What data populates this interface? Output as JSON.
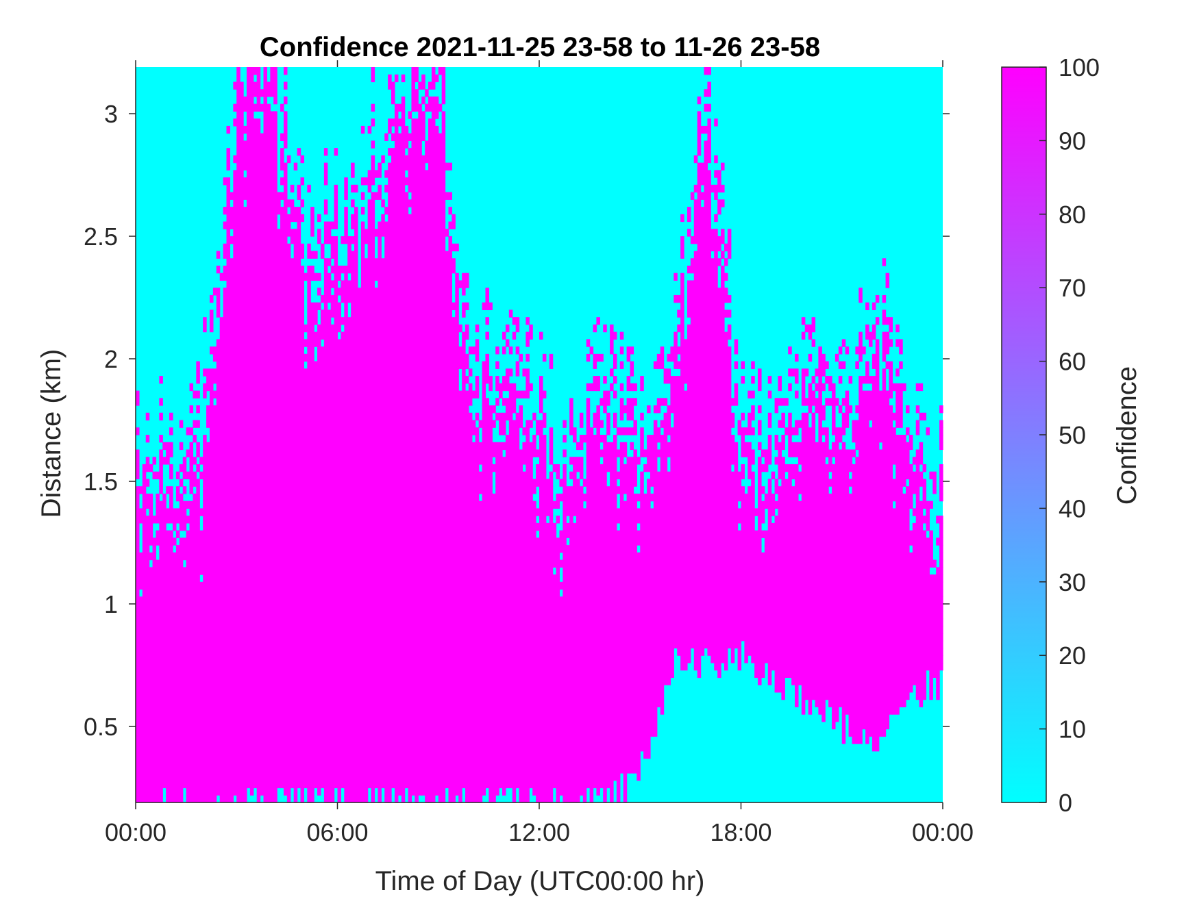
{
  "chart_data": {
    "type": "heatmap",
    "title": "Confidence 2021-11-25 23-58 to 11-26 23-58",
    "xlabel": "Time of Day (UTC00:00 hr)",
    "ylabel": "Distance (km)",
    "colorbar_label": "Confidence",
    "x_unit": "hours",
    "xlim": [
      0,
      24
    ],
    "ylim": [
      0.19,
      3.19
    ],
    "x_ticks": [
      {
        "value": 0,
        "label": "00:00"
      },
      {
        "value": 6,
        "label": "06:00"
      },
      {
        "value": 12,
        "label": "12:00"
      },
      {
        "value": 18,
        "label": "18:00"
      },
      {
        "value": 24,
        "label": "00:00"
      }
    ],
    "y_ticks": [
      {
        "value": 0.5,
        "label": "0.5"
      },
      {
        "value": 1,
        "label": "1"
      },
      {
        "value": 1.5,
        "label": "1.5"
      },
      {
        "value": 2,
        "label": "2"
      },
      {
        "value": 2.5,
        "label": "2.5"
      },
      {
        "value": 3,
        "label": "3"
      }
    ],
    "colorbar": {
      "range": [
        0,
        100
      ],
      "ticks": [
        0,
        10,
        20,
        30,
        40,
        50,
        60,
        70,
        80,
        90,
        100
      ],
      "tick_labels": [
        "0",
        "10",
        "20",
        "30",
        "40",
        "50",
        "60",
        "70",
        "80",
        "90",
        "100"
      ],
      "low_color": "#00ffff",
      "high_color": "#ff00ff"
    },
    "values_shown": [
      0,
      100
    ],
    "high_confidence_profile": {
      "description_key": "upper distance (km) of high-confidence (100) layer per hour; cells below are 100, above are 0",
      "hours": [
        0,
        1,
        2,
        3,
        4,
        5,
        6,
        7,
        8,
        9,
        10,
        11,
        12,
        13,
        14,
        15,
        16,
        17,
        18,
        19,
        20,
        21,
        22,
        23,
        24
      ],
      "top_km": [
        1.4,
        1.45,
        1.6,
        3.1,
        3.1,
        2.4,
        2.5,
        2.7,
        3.0,
        3.19,
        1.9,
        1.9,
        1.7,
        1.4,
        1.9,
        1.6,
        2.0,
        2.9,
        1.7,
        1.5,
        2.0,
        1.7,
        2.1,
        1.6,
        1.3
      ],
      "bottom_km": [
        0.19,
        0.19,
        0.19,
        0.19,
        0.19,
        0.19,
        0.19,
        0.19,
        0.19,
        0.19,
        0.19,
        0.19,
        0.19,
        0.19,
        0.19,
        0.3,
        0.8,
        0.75,
        0.8,
        0.7,
        0.6,
        0.5,
        0.4,
        0.6,
        0.7
      ]
    }
  }
}
